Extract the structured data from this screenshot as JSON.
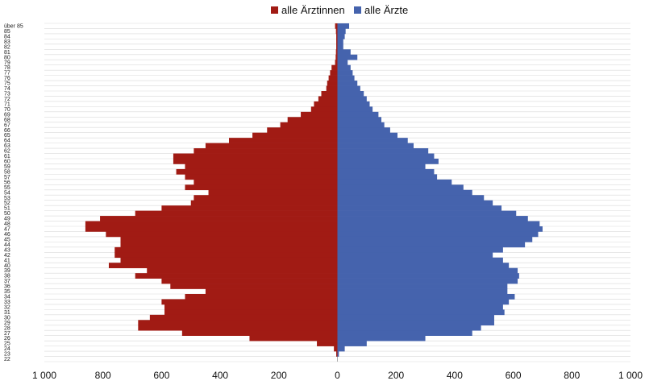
{
  "chart_data": {
    "type": "bar",
    "orientation": "horizontal-butterfly",
    "title": "",
    "legend_position": "top-center",
    "grid": true,
    "xlim": [
      -1000,
      1000
    ],
    "x_ticks": [
      -1000,
      -800,
      -600,
      -400,
      -200,
      0,
      200,
      400,
      600,
      800,
      1000
    ],
    "x_tick_labels": [
      "1 000",
      "800",
      "600",
      "400",
      "200",
      "0",
      "200",
      "400",
      "600",
      "800",
      "1 000"
    ],
    "categories": [
      "über 85",
      "85",
      "84",
      "83",
      "82",
      "81",
      "80",
      "79",
      "78",
      "77",
      "76",
      "75",
      "74",
      "73",
      "72",
      "71",
      "70",
      "69",
      "68",
      "67",
      "66",
      "65",
      "64",
      "63",
      "62",
      "61",
      "60",
      "59",
      "58",
      "57",
      "56",
      "55",
      "54",
      "53",
      "52",
      "51",
      "50",
      "49",
      "48",
      "47",
      "46",
      "45",
      "44",
      "43",
      "42",
      "41",
      "40",
      "39",
      "38",
      "37",
      "36",
      "35",
      "34",
      "33",
      "32",
      "31",
      "30",
      "29",
      "28",
      "27",
      "26",
      "25",
      "24",
      "23",
      "22"
    ],
    "series": [
      {
        "name": "alle Ärztinnen",
        "color": "#a11b14",
        "side": "left",
        "values": [
          8,
          5,
          4,
          4,
          4,
          5,
          6,
          8,
          20,
          25,
          30,
          35,
          38,
          55,
          65,
          80,
          90,
          125,
          170,
          195,
          240,
          290,
          370,
          450,
          490,
          560,
          560,
          520,
          550,
          520,
          490,
          520,
          440,
          490,
          500,
          600,
          690,
          810,
          860,
          860,
          790,
          740,
          740,
          760,
          760,
          740,
          780,
          650,
          690,
          600,
          570,
          450,
          520,
          600,
          590,
          590,
          640,
          680,
          680,
          530,
          300,
          70,
          12,
          4,
          0
        ]
      },
      {
        "name": "alle Ärzte",
        "color": "#4563ad",
        "side": "right",
        "values": [
          40,
          28,
          25,
          20,
          20,
          45,
          68,
          35,
          45,
          52,
          58,
          68,
          78,
          90,
          100,
          110,
          120,
          140,
          150,
          160,
          180,
          205,
          240,
          260,
          310,
          330,
          345,
          300,
          330,
          340,
          390,
          430,
          460,
          500,
          530,
          560,
          610,
          650,
          690,
          700,
          685,
          665,
          640,
          565,
          530,
          565,
          585,
          615,
          620,
          615,
          580,
          580,
          605,
          585,
          565,
          570,
          535,
          535,
          490,
          460,
          300,
          100,
          25,
          5,
          0
        ]
      }
    ]
  }
}
